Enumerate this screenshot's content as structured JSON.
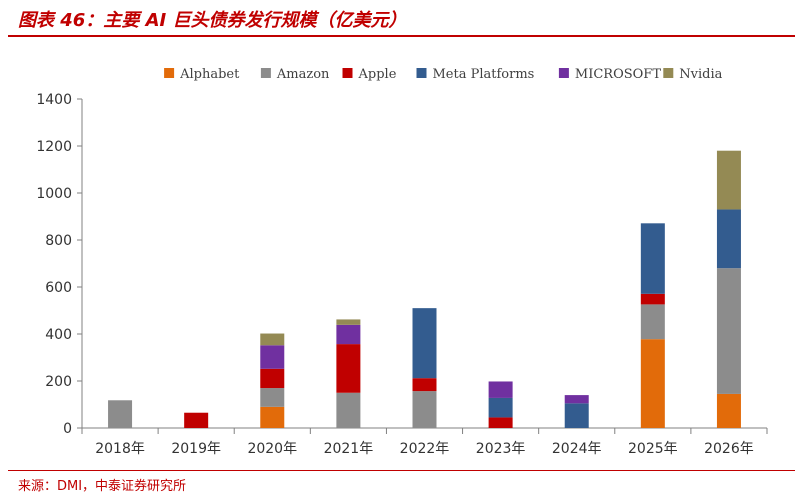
{
  "header": {
    "title": "图表 46：主要 AI 巨头债券发行规模（亿美元）"
  },
  "footer": {
    "source": "来源：DMI，中泰证券研究所"
  },
  "chart_data": {
    "type": "bar",
    "stacked": true,
    "categories": [
      "2018年",
      "2019年",
      "2020年",
      "2021年",
      "2022年",
      "2023年",
      "2024年",
      "2025年",
      "2026年"
    ],
    "series": [
      {
        "name": "Alphabet",
        "color": "#e26b0a",
        "values": [
          0,
          0,
          90,
          0,
          0,
          0,
          0,
          378,
          145
        ]
      },
      {
        "name": "Amazon",
        "color": "#8c8c8c",
        "values": [
          118,
          0,
          80,
          150,
          157,
          0,
          0,
          148,
          535
        ]
      },
      {
        "name": "Apple",
        "color": "#c00000",
        "values": [
          0,
          65,
          82,
          207,
          55,
          45,
          0,
          45,
          0
        ]
      },
      {
        "name": "Meta Platforms",
        "color": "#335c8f",
        "values": [
          0,
          0,
          0,
          0,
          298,
          83,
          105,
          300,
          250
        ]
      },
      {
        "name": "MICROSOFT",
        "color": "#7030a0",
        "values": [
          0,
          0,
          100,
          82,
          0,
          70,
          35,
          0,
          0
        ]
      },
      {
        "name": "Nvidia",
        "color": "#948a54",
        "values": [
          0,
          0,
          50,
          23,
          0,
          0,
          0,
          0,
          250
        ]
      }
    ],
    "yticks": [
      "0",
      "200",
      "400",
      "600",
      "800",
      "1000",
      "1200",
      "1400"
    ],
    "ylim": [
      0,
      1400
    ],
    "grid": false,
    "legend_position": "top"
  }
}
